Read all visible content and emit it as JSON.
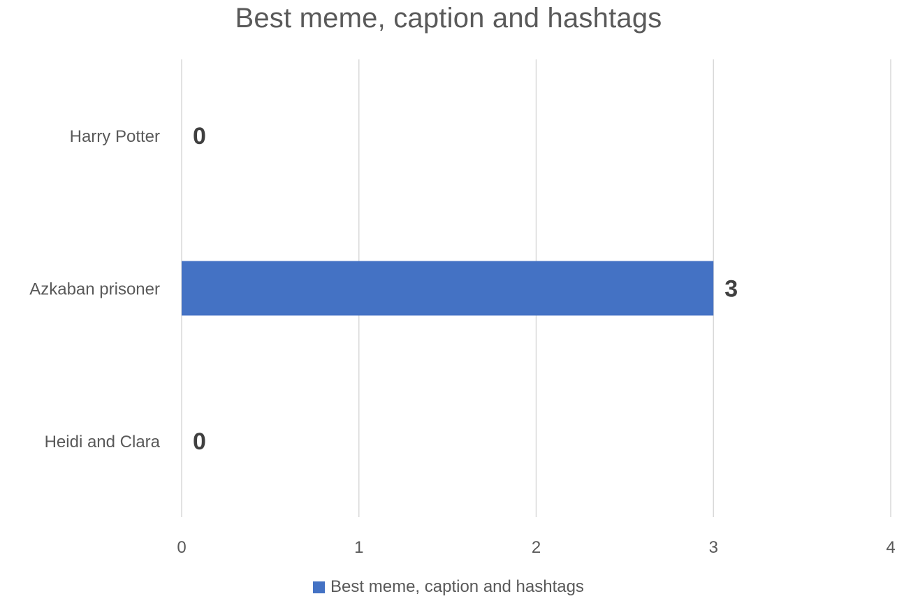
{
  "chart_data": {
    "type": "bar",
    "orientation": "horizontal",
    "title": "Best meme, caption and hashtags",
    "categories": [
      "Harry Potter",
      "Azkaban prisoner",
      "Heidi and Clara"
    ],
    "series": [
      {
        "name": "Best meme, caption and hashtags",
        "values": [
          0,
          3,
          0
        ],
        "color": "#4472C4"
      }
    ],
    "xlim": [
      0,
      4
    ],
    "xticks": [
      "0",
      "1",
      "2",
      "3",
      "4"
    ],
    "grid": true,
    "data_labels": true,
    "legend_position": "bottom"
  }
}
